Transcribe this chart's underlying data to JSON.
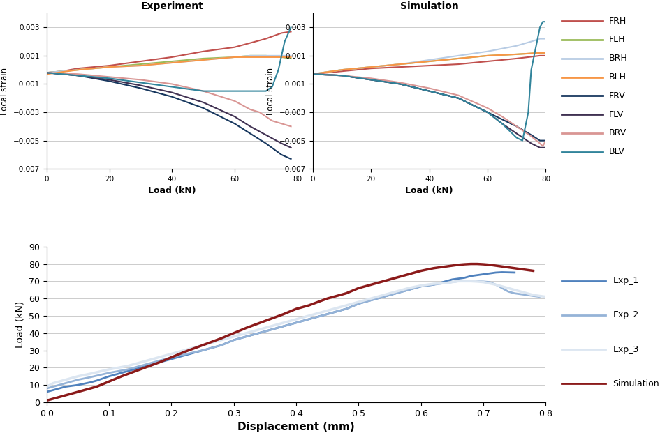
{
  "exp_title": "Experiment",
  "sim_title": "Simulation",
  "xlabel_strain": "Load (kN)",
  "ylabel_strain": "Local strain",
  "xlabel_disp": "Displacement (mm)",
  "ylabel_disp": "Load (kN)",
  "strain_xlim": [
    0,
    80
  ],
  "strain_ylim": [
    -0.007,
    0.004
  ],
  "disp_xlim": [
    0,
    0.8
  ],
  "disp_ylim": [
    0,
    90
  ],
  "strain_yticks": [
    -0.007,
    -0.005,
    -0.003,
    -0.001,
    0.001,
    0.003
  ],
  "strain_xticks": [
    0,
    20,
    40,
    60,
    80
  ],
  "disp_yticks": [
    0,
    10,
    20,
    30,
    40,
    50,
    60,
    70,
    80,
    90
  ],
  "disp_xticks": [
    0,
    0.1,
    0.2,
    0.3,
    0.4,
    0.5,
    0.6,
    0.7,
    0.8
  ],
  "legend_strain": [
    "FRH",
    "FLH",
    "BRH",
    "BLH",
    "FRV",
    "FLV",
    "BRV",
    "BLV"
  ],
  "legend_strain_colors": [
    "#c0504d",
    "#9bbb59",
    "#b8cce4",
    "#f79646",
    "#17375e",
    "#403152",
    "#d99694",
    "#31849b"
  ],
  "legend_disp": [
    "Exp_1",
    "Exp_2",
    "Exp_3",
    "Simulation"
  ],
  "legend_disp_colors": [
    "#4f81bd",
    "#95b3d7",
    "#dce6f1",
    "#8b1a1a"
  ]
}
